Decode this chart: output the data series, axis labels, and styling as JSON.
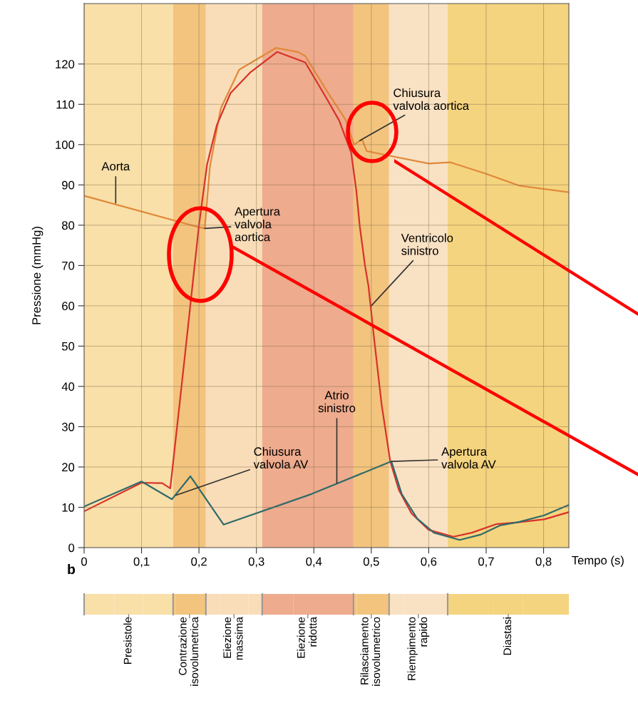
{
  "chart_data": {
    "type": "line",
    "xlabel": "Tempo (s)",
    "ylabel": "Pressione (mmHg)",
    "xlim": [
      0,
      0.844
    ],
    "ylim": [
      0,
      135
    ],
    "xticks": [
      0,
      {
        "value": 0.1,
        "label": "0,1"
      },
      {
        "value": 0.2,
        "label": "0,2"
      },
      {
        "value": 0.3,
        "label": "0,3"
      },
      {
        "value": 0.4,
        "label": "0,4"
      },
      {
        "value": 0.5,
        "label": "0,5"
      },
      {
        "value": 0.6,
        "label": "0,6"
      },
      {
        "value": 0.7,
        "label": "0,7"
      },
      {
        "value": 0.8,
        "label": "0,8"
      }
    ],
    "yticks": [
      0,
      10,
      20,
      30,
      40,
      50,
      60,
      70,
      80,
      90,
      100,
      110,
      120
    ],
    "grid": true,
    "legend": "bottom",
    "series": [
      {
        "color": "#e0893a",
        "x": [
          0,
          0.2,
          0.21,
          0.219,
          0.238,
          0.27,
          0.334,
          0.372,
          0.385,
          0.424,
          0.456,
          0.47,
          0.484,
          0.492,
          0.526,
          0.6,
          0.638,
          0.699,
          0.758,
          0.844
        ],
        "values": [
          87.3,
          79.5,
          79.2,
          94.5,
          109,
          118.6,
          124,
          123,
          122,
          113,
          106,
          100,
          101.3,
          98.4,
          97.4,
          95.3,
          95.6,
          92.8,
          89.8,
          88.2
        ]
      },
      {
        "color": "#d8322a",
        "x": [
          0,
          0.1,
          0.136,
          0.15,
          0.175,
          0.2,
          0.214,
          0.231,
          0.255,
          0.29,
          0.336,
          0.385,
          0.42,
          0.444,
          0.465,
          0.474,
          0.48,
          0.489,
          0.495,
          0.504,
          0.518,
          0.533,
          0.548,
          0.57,
          0.6,
          0.643,
          0.675,
          0.717,
          0.752,
          0.801,
          0.844
        ],
        "values": [
          9,
          16.1,
          16,
          14.7,
          47,
          80,
          95,
          104.8,
          112.8,
          118,
          123,
          120.4,
          112,
          106,
          98,
          88.5,
          79.7,
          70,
          65,
          53,
          35.5,
          21.4,
          14.3,
          8.5,
          4.4,
          2.7,
          3.7,
          5.8,
          6.2,
          7,
          8.8
        ]
      },
      {
        "color": "#2f6b6a",
        "x": [
          0,
          0.1,
          0.153,
          0.185,
          0.243,
          0.396,
          0.535,
          0.553,
          0.58,
          0.609,
          0.654,
          0.69,
          0.724,
          0.758,
          0.801,
          0.844
        ],
        "values": [
          10.2,
          16.4,
          12,
          17.7,
          5.7,
          13.3,
          21.4,
          13.3,
          7.2,
          3.7,
          1.9,
          3.2,
          5.5,
          6.4,
          8,
          10.6
        ]
      }
    ],
    "bands": [
      {
        "axis": "x",
        "from": 0,
        "to": 0.155,
        "label": "Presistole",
        "color": "#f9dfa8"
      },
      {
        "axis": "x",
        "from": 0.155,
        "to": 0.212,
        "label": "Contrazione\nisovolumetrica",
        "color": "#f3c47e"
      },
      {
        "axis": "x",
        "from": 0.212,
        "to": 0.31,
        "label": "Eiezione\nmassima",
        "color": "#f9ddb8"
      },
      {
        "axis": "x",
        "from": 0.31,
        "to": 0.469,
        "label": "Eiezione\nridotta",
        "color": "#eeab8d"
      },
      {
        "axis": "x",
        "from": 0.469,
        "to": 0.531,
        "label": "Rilasciamento\nisovolumetrico",
        "color": "#f3c47e"
      },
      {
        "axis": "x",
        "from": 0.531,
        "to": 0.633,
        "label": "Riempimento\nrapido",
        "color": "#f9e1c3"
      },
      {
        "axis": "x",
        "from": 0.633,
        "to": 0.844,
        "label": "Diastasi",
        "color": "#f5d47f"
      }
    ],
    "annotations": [
      {
        "text": "Aorta",
        "x": 0.055,
        "y": 85.5
      },
      {
        "text": "Apertura\nvalvola\naortica",
        "x": 0.21,
        "y": 79.2
      },
      {
        "text": "Chiusura\nvalvola aortica",
        "x": 0.48,
        "y": 101
      },
      {
        "text": "Ventricolo\nsinistro",
        "x": 0.5,
        "y": 60
      },
      {
        "text": "Atrio\nsinistro",
        "x": 0.44,
        "y": 16
      },
      {
        "text": "Chiusura\nvalvola AV",
        "x": 0.16,
        "y": 13
      },
      {
        "text": "Apertura\nvalvola AV",
        "x": 0.535,
        "y": 21.4
      },
      "b"
    ]
  }
}
